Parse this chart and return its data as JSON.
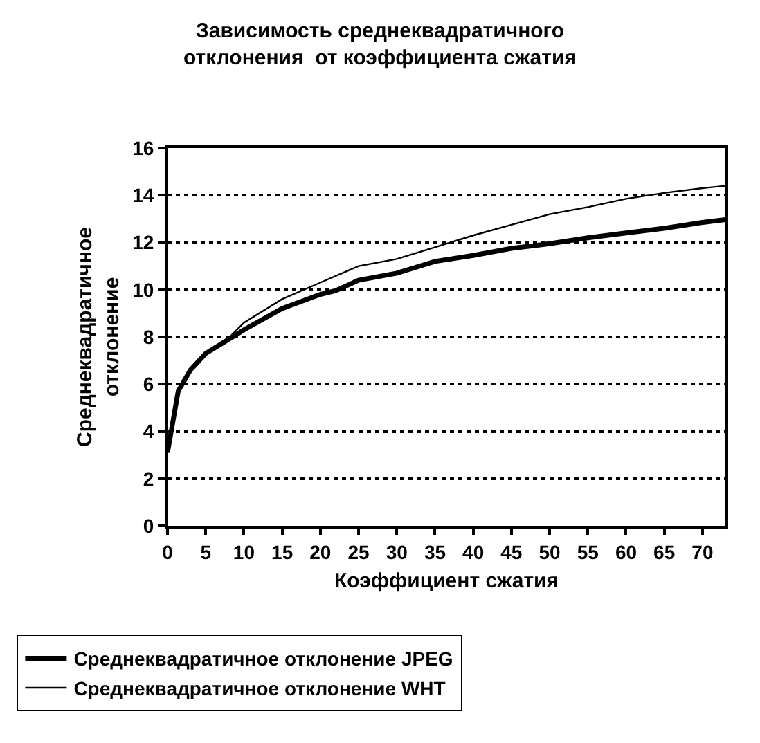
{
  "chart_data": {
    "type": "line",
    "title": "Зависимость среднеквадратичного\nотклонения  от коэффициента сжатия",
    "xlabel": "Коэффициент сжатия",
    "ylabel": "Среднеквадратичное\nотклонение",
    "xlim": [
      0,
      73
    ],
    "xticks": [
      0,
      5,
      10,
      15,
      20,
      25,
      30,
      35,
      40,
      45,
      50,
      55,
      60,
      65,
      70
    ],
    "ylim": [
      0,
      16
    ],
    "yticks": [
      0,
      2,
      4,
      6,
      8,
      10,
      12,
      14,
      16
    ],
    "grid": "y",
    "legend": "bottom",
    "marker": "none",
    "series": [
      {
        "name": "Среднеквадратичное отклонение JPEG",
        "color": "#000000",
        "x": [
          0,
          1.4,
          3,
          5,
          8,
          10,
          15,
          20,
          22,
          25,
          30,
          35,
          40,
          45,
          50,
          55,
          60,
          65,
          70,
          73
        ],
        "values": [
          3.1,
          5.7,
          6.6,
          7.3,
          7.9,
          8.3,
          9.2,
          9.8,
          9.96,
          10.4,
          10.7,
          11.2,
          11.45,
          11.75,
          11.95,
          12.2,
          12.4,
          12.6,
          12.85,
          12.97
        ]
      },
      {
        "name": "Среднеквадратичное отклонение WHT",
        "color": "#000000",
        "x": [
          0,
          1.4,
          3,
          5,
          8,
          10,
          15,
          20,
          25,
          30,
          35,
          40,
          45,
          50,
          55,
          60,
          65,
          70,
          73
        ],
        "values": [
          3.1,
          5.7,
          6.6,
          7.3,
          7.95,
          8.6,
          9.6,
          10.3,
          11.0,
          11.3,
          11.8,
          12.3,
          12.75,
          13.2,
          13.5,
          13.85,
          14.1,
          14.3,
          14.4
        ]
      }
    ]
  }
}
